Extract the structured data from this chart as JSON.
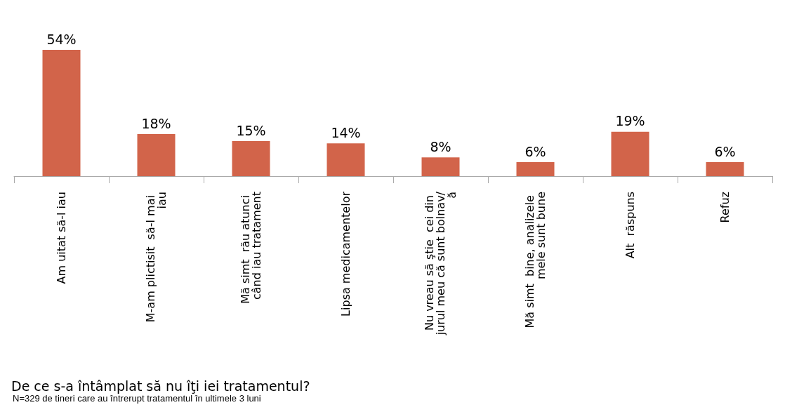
{
  "chart_data": {
    "type": "bar",
    "title": "De ce s-a întâmplat să nu îţi iei tratamentul?",
    "annotations": [
      "N=329 de tineri care au întrerupt tratamentul în ultimele 3 luni"
    ],
    "categories": [
      "Am uitat să-l iau",
      "M-am plictisit  să-l mai iau",
      "Mă simt  rău atunci când iau tratament",
      "Lipsa medicamentelor",
      "Nu vreau să ştie  cei din jurul meu că sunt bolnav/ă",
      "Mă simt  bine, analizele mele sunt bune",
      "Alt  răspuns",
      "Refuz"
    ],
    "values": [
      54,
      18,
      15,
      14,
      8,
      6,
      19,
      6
    ],
    "value_labels": [
      "54%",
      "18%",
      "15%",
      "14%",
      "8%",
      "6%",
      "19%",
      "6%"
    ],
    "color": "#d2644a"
  }
}
